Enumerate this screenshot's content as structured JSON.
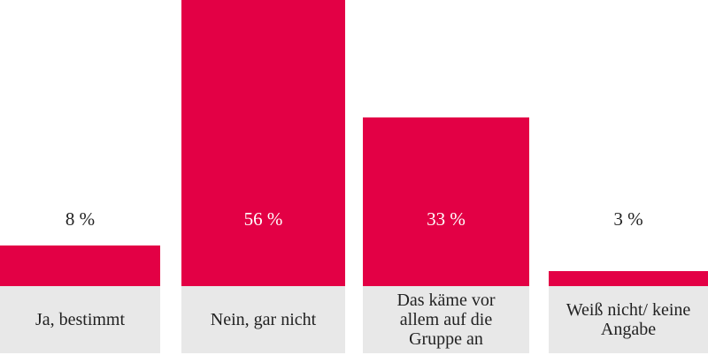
{
  "chart_data": {
    "type": "bar",
    "categories": [
      "Ja, bestimmt",
      "Nein, gar nicht",
      "Das käme vor allem auf die Gruppe an",
      "Weiß nicht/ keine Angabe"
    ],
    "values": [
      8,
      56,
      33,
      3
    ],
    "value_labels": [
      "8 %",
      "56 %",
      "33 %",
      "3 %"
    ],
    "color": "#e30045"
  }
}
